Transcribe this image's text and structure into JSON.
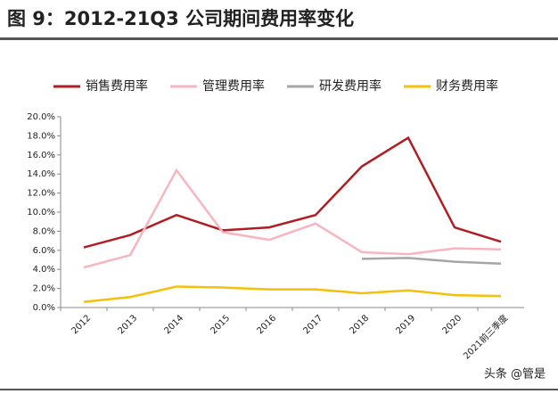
{
  "chart_data": {
    "type": "line",
    "title": "图 9：2012-21Q3 公司期间费用率变化",
    "watermark": "头条 @管是",
    "categories": [
      "2012",
      "2013",
      "2014",
      "2015",
      "2016",
      "2017",
      "2018",
      "2019",
      "2020",
      "2021前三季度"
    ],
    "series": [
      {
        "name": "销售费用率",
        "color": "#b01e23",
        "values": [
          6.3,
          7.6,
          9.7,
          8.1,
          8.4,
          9.7,
          14.8,
          17.8,
          8.4,
          6.9
        ]
      },
      {
        "name": "管理费用率",
        "color": "#f7b5c0",
        "values": [
          4.2,
          5.5,
          14.4,
          7.9,
          7.1,
          8.8,
          5.8,
          5.6,
          6.2,
          6.1
        ]
      },
      {
        "name": "研发费用率",
        "color": "#a6a6a6",
        "values": [
          null,
          null,
          null,
          null,
          null,
          null,
          5.1,
          5.2,
          4.8,
          4.6
        ]
      },
      {
        "name": "财务费用率",
        "color": "#f5bf0a",
        "values": [
          0.6,
          1.1,
          2.2,
          2.1,
          1.9,
          1.9,
          1.5,
          1.8,
          1.3,
          1.2
        ]
      }
    ],
    "ylim": [
      0,
      20
    ],
    "yticks": [
      {
        "value": 0,
        "label": "0.0%"
      },
      {
        "value": 2,
        "label": "2.0%"
      },
      {
        "value": 4,
        "label": "4.0%"
      },
      {
        "value": 6,
        "label": "6.0%"
      },
      {
        "value": 8,
        "label": "8.0%"
      },
      {
        "value": 10,
        "label": "10.0%"
      },
      {
        "value": 12,
        "label": "12.0%"
      },
      {
        "value": 14,
        "label": "14.0%"
      },
      {
        "value": 16,
        "label": "16.0%"
      },
      {
        "value": 18,
        "label": "18.0%"
      },
      {
        "value": 20,
        "label": "20.0%"
      }
    ],
    "legend": "top"
  }
}
